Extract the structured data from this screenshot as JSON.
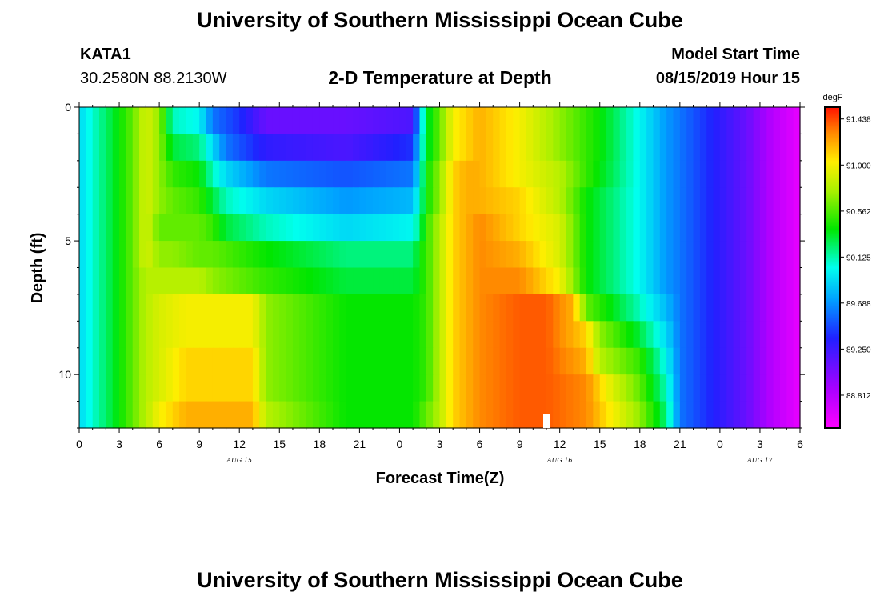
{
  "header": {
    "title_top": "University of Southern Mississippi Ocean Cube",
    "station_id": "KATA1",
    "station_coords": "30.2580N 88.2130W",
    "plot_title": "2-D Temperature at Depth",
    "model_start_label": "Model Start Time",
    "model_start_value": "08/15/2019 Hour 15",
    "title_bottom": "University of Southern Mississippi Ocean Cube"
  },
  "chart_data": {
    "type": "heatmap",
    "title": "2-D Temperature at Depth",
    "xlabel": "Forecast Time(Z)",
    "ylabel": "Depth (ft)",
    "units": "degF",
    "x_tick_labels": [
      "0",
      "3",
      "6",
      "9",
      "12",
      "15",
      "18",
      "21",
      "0",
      "3",
      "6",
      "9",
      "12",
      "15",
      "18",
      "21",
      "0",
      "3",
      "6"
    ],
    "x_ticks_hours": [
      0,
      3,
      6,
      9,
      12,
      15,
      18,
      21,
      24,
      27,
      30,
      33,
      36,
      39,
      42,
      45,
      48,
      51,
      54
    ],
    "xlim_hours": [
      0,
      54
    ],
    "date_labels": [
      {
        "text": "AUG 15",
        "hour": 12
      },
      {
        "text": "AUG 16",
        "hour": 36
      },
      {
        "text": "AUG 17",
        "hour": 51
      }
    ],
    "y_tick_labels": [
      "0",
      "5",
      "10"
    ],
    "y_ticks": [
      0,
      5,
      10
    ],
    "ylim_ft": [
      0,
      12
    ],
    "colorbar": {
      "min": 88.5,
      "max": 91.55,
      "labels": [
        "91.438",
        "91.000",
        "90.562",
        "90.125",
        "89.688",
        "89.250",
        "88.812"
      ],
      "values": [
        91.438,
        91.0,
        90.562,
        90.125,
        89.688,
        89.25,
        88.812
      ]
    },
    "depth_bands_ft": [
      0.5,
      1.5,
      2.5,
      3.5,
      4.5,
      5.5,
      6.5,
      7.5,
      8.5,
      9.5,
      10.5,
      11.5
    ],
    "marker": {
      "hour": 35,
      "description": "current time marker"
    },
    "temperature_degF_by_depth_band": [
      [
        [
          0,
          89.9
        ],
        [
          3,
          90.4
        ],
        [
          4,
          90.6
        ],
        [
          5,
          90.9
        ],
        [
          6,
          90.7
        ],
        [
          7,
          90.1
        ],
        [
          9,
          90.0
        ],
        [
          10,
          89.6
        ],
        [
          12,
          89.4
        ],
        [
          14,
          89.1
        ],
        [
          20,
          89.1
        ],
        [
          25,
          89.2
        ],
        [
          25.5,
          89.8
        ],
        [
          26,
          90.3
        ],
        [
          27,
          90.6
        ],
        [
          28,
          91.0
        ],
        [
          29,
          91.1
        ],
        [
          30,
          91.2
        ],
        [
          33,
          91.0
        ],
        [
          36,
          90.7
        ],
        [
          39,
          90.4
        ],
        [
          42,
          90.0
        ],
        [
          44,
          89.7
        ],
        [
          45,
          89.6
        ],
        [
          50,
          89.1
        ],
        [
          52,
          88.8
        ],
        [
          54,
          88.6
        ]
      ],
      [
        [
          0,
          89.9
        ],
        [
          3,
          90.4
        ],
        [
          4,
          90.6
        ],
        [
          5,
          90.9
        ],
        [
          6,
          90.7
        ],
        [
          7,
          90.3
        ],
        [
          9,
          90.2
        ],
        [
          10,
          89.9
        ],
        [
          11,
          89.6
        ],
        [
          14,
          89.3
        ],
        [
          20,
          89.2
        ],
        [
          25,
          89.4
        ],
        [
          25.5,
          89.9
        ],
        [
          26,
          90.3
        ],
        [
          27,
          90.6
        ],
        [
          28,
          91.0
        ],
        [
          29,
          91.1
        ],
        [
          30,
          91.2
        ],
        [
          33,
          91.0
        ],
        [
          36,
          90.7
        ],
        [
          39,
          90.4
        ],
        [
          42,
          90.0
        ],
        [
          44,
          89.7
        ],
        [
          45,
          89.6
        ],
        [
          50,
          89.1
        ],
        [
          52,
          88.8
        ],
        [
          54,
          88.6
        ]
      ],
      [
        [
          0,
          89.9
        ],
        [
          3,
          90.4
        ],
        [
          4,
          90.6
        ],
        [
          5,
          90.9
        ],
        [
          6,
          90.7
        ],
        [
          7,
          90.5
        ],
        [
          9,
          90.4
        ],
        [
          10,
          90.1
        ],
        [
          11,
          89.9
        ],
        [
          14,
          89.6
        ],
        [
          20,
          89.5
        ],
        [
          25,
          89.6
        ],
        [
          25.5,
          90.0
        ],
        [
          26,
          90.4
        ],
        [
          27,
          90.7
        ],
        [
          28,
          91.1
        ],
        [
          29,
          91.2
        ],
        [
          30,
          91.2
        ],
        [
          33,
          91.0
        ],
        [
          36,
          90.8
        ],
        [
          38,
          90.5
        ],
        [
          42,
          90.0
        ],
        [
          44,
          89.7
        ],
        [
          45,
          89.6
        ],
        [
          50,
          89.1
        ],
        [
          52,
          88.8
        ],
        [
          54,
          88.6
        ]
      ],
      [
        [
          0,
          89.9
        ],
        [
          3,
          90.4
        ],
        [
          4,
          90.6
        ],
        [
          5,
          90.9
        ],
        [
          6,
          90.7
        ],
        [
          7,
          90.6
        ],
        [
          9,
          90.5
        ],
        [
          10,
          90.3
        ],
        [
          11,
          90.1
        ],
        [
          14,
          89.9
        ],
        [
          20,
          89.7
        ],
        [
          25,
          89.8
        ],
        [
          25.5,
          90.1
        ],
        [
          26,
          90.4
        ],
        [
          27,
          90.7
        ],
        [
          28,
          91.1
        ],
        [
          29,
          91.2
        ],
        [
          30,
          91.2
        ],
        [
          33,
          91.1
        ],
        [
          36,
          90.8
        ],
        [
          38,
          90.4
        ],
        [
          42,
          90.0
        ],
        [
          44,
          89.7
        ],
        [
          45,
          89.6
        ],
        [
          50,
          89.1
        ],
        [
          52,
          88.8
        ],
        [
          54,
          88.6
        ]
      ],
      [
        [
          0,
          89.9
        ],
        [
          3,
          90.4
        ],
        [
          4,
          90.6
        ],
        [
          5,
          90.9
        ],
        [
          6,
          90.6
        ],
        [
          7,
          90.6
        ],
        [
          9,
          90.6
        ],
        [
          10,
          90.5
        ],
        [
          11,
          90.3
        ],
        [
          14,
          90.1
        ],
        [
          20,
          89.9
        ],
        [
          25,
          90.0
        ],
        [
          25.5,
          90.2
        ],
        [
          26,
          90.5
        ],
        [
          27,
          90.8
        ],
        [
          28,
          91.1
        ],
        [
          29,
          91.2
        ],
        [
          30,
          91.3
        ],
        [
          33,
          91.1
        ],
        [
          36,
          90.9
        ],
        [
          38,
          90.4
        ],
        [
          42,
          90.0
        ],
        [
          44,
          89.7
        ],
        [
          45,
          89.6
        ],
        [
          50,
          89.1
        ],
        [
          52,
          88.8
        ],
        [
          54,
          88.6
        ]
      ],
      [
        [
          0,
          89.9
        ],
        [
          3,
          90.4
        ],
        [
          4,
          90.6
        ],
        [
          5,
          90.9
        ],
        [
          6,
          90.7
        ],
        [
          7,
          90.7
        ],
        [
          9,
          90.6
        ],
        [
          10,
          90.6
        ],
        [
          14,
          90.4
        ],
        [
          20,
          90.2
        ],
        [
          25,
          90.2
        ],
        [
          25.5,
          90.4
        ],
        [
          26,
          90.5
        ],
        [
          27,
          90.8
        ],
        [
          28,
          91.1
        ],
        [
          29,
          91.2
        ],
        [
          30,
          91.3
        ],
        [
          33,
          91.2
        ],
        [
          36,
          90.9
        ],
        [
          38,
          90.4
        ],
        [
          42,
          90.0
        ],
        [
          44,
          89.7
        ],
        [
          45,
          89.6
        ],
        [
          50,
          89.1
        ],
        [
          52,
          88.8
        ],
        [
          54,
          88.6
        ]
      ],
      [
        [
          0,
          89.9
        ],
        [
          3,
          90.4
        ],
        [
          4,
          90.6
        ],
        [
          5,
          90.8
        ],
        [
          6,
          90.8
        ],
        [
          9,
          90.8
        ],
        [
          10,
          90.7
        ],
        [
          14,
          90.5
        ],
        [
          20,
          90.3
        ],
        [
          25,
          90.3
        ],
        [
          26,
          90.5
        ],
        [
          27,
          90.8
        ],
        [
          28,
          91.1
        ],
        [
          29,
          91.2
        ],
        [
          30,
          91.3
        ],
        [
          33,
          91.3
        ],
        [
          36,
          91.0
        ],
        [
          38,
          90.4
        ],
        [
          42,
          90.0
        ],
        [
          44,
          89.7
        ],
        [
          45,
          89.6
        ],
        [
          50,
          89.1
        ],
        [
          52,
          88.8
        ],
        [
          54,
          88.6
        ]
      ],
      [
        [
          0,
          89.9
        ],
        [
          3,
          90.4
        ],
        [
          4,
          90.6
        ],
        [
          5,
          90.8
        ],
        [
          6,
          90.9
        ],
        [
          8,
          91.0
        ],
        [
          13,
          91.0
        ],
        [
          14,
          90.7
        ],
        [
          20,
          90.4
        ],
        [
          25,
          90.4
        ],
        [
          26,
          90.5
        ],
        [
          27,
          90.8
        ],
        [
          28,
          91.1
        ],
        [
          29,
          91.2
        ],
        [
          30,
          91.3
        ],
        [
          33,
          91.4
        ],
        [
          35,
          91.4
        ],
        [
          37,
          91.2
        ],
        [
          38,
          90.6
        ],
        [
          42,
          90.1
        ],
        [
          44,
          89.8
        ],
        [
          45,
          89.6
        ],
        [
          50,
          89.1
        ],
        [
          52,
          88.8
        ],
        [
          54,
          88.6
        ]
      ],
      [
        [
          0,
          89.9
        ],
        [
          3,
          90.4
        ],
        [
          4,
          90.6
        ],
        [
          5,
          90.8
        ],
        [
          6,
          90.9
        ],
        [
          8,
          91.0
        ],
        [
          13,
          91.0
        ],
        [
          14,
          90.7
        ],
        [
          20,
          90.4
        ],
        [
          25,
          90.4
        ],
        [
          26,
          90.5
        ],
        [
          27,
          90.8
        ],
        [
          28,
          91.1
        ],
        [
          29,
          91.2
        ],
        [
          30,
          91.3
        ],
        [
          33,
          91.4
        ],
        [
          35,
          91.4
        ],
        [
          38,
          91.1
        ],
        [
          39,
          90.7
        ],
        [
          42,
          90.3
        ],
        [
          44,
          89.9
        ],
        [
          45,
          89.6
        ],
        [
          50,
          89.1
        ],
        [
          52,
          88.8
        ],
        [
          54,
          88.6
        ]
      ],
      [
        [
          0,
          89.9
        ],
        [
          3,
          90.4
        ],
        [
          4,
          90.6
        ],
        [
          5,
          90.8
        ],
        [
          6,
          90.9
        ],
        [
          8,
          91.1
        ],
        [
          13,
          91.1
        ],
        [
          14,
          90.7
        ],
        [
          20,
          90.4
        ],
        [
          25,
          90.4
        ],
        [
          26,
          90.5
        ],
        [
          27,
          90.8
        ],
        [
          28,
          91.1
        ],
        [
          29,
          91.2
        ],
        [
          30,
          91.3
        ],
        [
          33,
          91.4
        ],
        [
          35,
          91.4
        ],
        [
          38,
          91.2
        ],
        [
          39,
          90.8
        ],
        [
          42,
          90.5
        ],
        [
          44,
          90.0
        ],
        [
          45,
          89.6
        ],
        [
          50,
          89.1
        ],
        [
          52,
          88.8
        ],
        [
          54,
          88.6
        ]
      ],
      [
        [
          0,
          89.9
        ],
        [
          3,
          90.4
        ],
        [
          4,
          90.6
        ],
        [
          5,
          90.8
        ],
        [
          6,
          90.9
        ],
        [
          8,
          91.1
        ],
        [
          13,
          91.1
        ],
        [
          14,
          90.7
        ],
        [
          20,
          90.4
        ],
        [
          25,
          90.4
        ],
        [
          26,
          90.5
        ],
        [
          27,
          90.8
        ],
        [
          28,
          91.1
        ],
        [
          29,
          91.2
        ],
        [
          30,
          91.3
        ],
        [
          33,
          91.4
        ],
        [
          35,
          91.4
        ],
        [
          38,
          91.3
        ],
        [
          40,
          90.9
        ],
        [
          42,
          90.6
        ],
        [
          44,
          90.1
        ],
        [
          45,
          89.6
        ],
        [
          50,
          89.1
        ],
        [
          52,
          88.8
        ],
        [
          54,
          88.6
        ]
      ],
      [
        [
          0,
          89.9
        ],
        [
          3,
          90.4
        ],
        [
          4,
          90.6
        ],
        [
          5,
          90.8
        ],
        [
          6,
          91.0
        ],
        [
          8,
          91.2
        ],
        [
          13,
          91.2
        ],
        [
          14,
          90.8
        ],
        [
          20,
          90.4
        ],
        [
          25,
          90.4
        ],
        [
          26,
          90.6
        ],
        [
          27,
          90.8
        ],
        [
          28,
          91.1
        ],
        [
          29,
          91.2
        ],
        [
          30,
          91.3
        ],
        [
          33,
          91.4
        ],
        [
          35,
          91.4
        ],
        [
          38,
          91.3
        ],
        [
          40,
          91.0
        ],
        [
          42,
          90.7
        ],
        [
          44,
          90.2
        ],
        [
          45,
          89.6
        ],
        [
          50,
          89.1
        ],
        [
          52,
          88.8
        ],
        [
          54,
          88.6
        ]
      ]
    ]
  }
}
